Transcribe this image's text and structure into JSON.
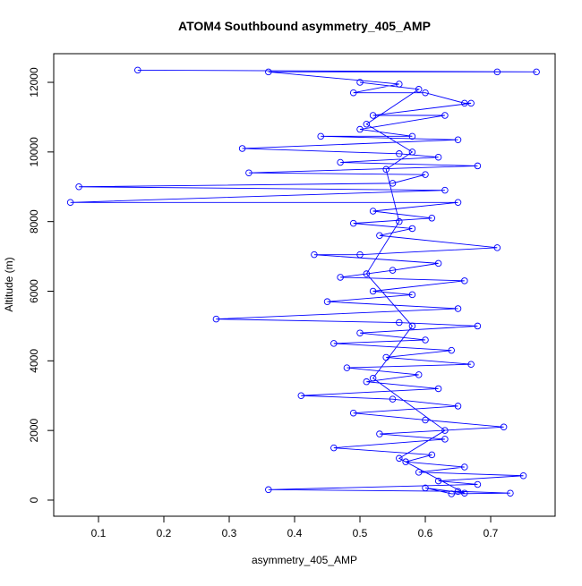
{
  "chart_data": {
    "type": "line",
    "title": "ATOM4 Southbound asymmetry_405_AMP",
    "x_label": "asymmetry_405_AMP",
    "y_label": "Altitude (m)",
    "color": "#0000ff",
    "markers": true,
    "xlim": [
      0.0315,
      0.7986
    ],
    "ylim": [
      -463,
      12823
    ],
    "xticks": [
      0.1,
      0.2,
      0.3,
      0.4,
      0.5,
      0.6,
      0.7
    ],
    "yticks": [
      0,
      2000,
      4000,
      6000,
      8000,
      10000,
      12000
    ],
    "x": [
      0.16,
      0.77,
      0.71,
      0.36,
      0.56,
      0.49,
      0.6,
      0.66,
      0.67,
      0.52,
      0.63,
      0.5,
      0.58,
      0.44,
      0.65,
      0.32,
      0.56,
      0.62,
      0.47,
      0.68,
      0.33,
      0.6,
      0.55,
      0.07,
      0.63,
      0.057,
      0.65,
      0.52,
      0.61,
      0.49,
      0.58,
      0.53,
      0.71,
      0.5,
      0.43,
      0.62,
      0.55,
      0.47,
      0.66,
      0.52,
      0.58,
      0.45,
      0.65,
      0.28,
      0.56,
      0.68,
      0.5,
      0.6,
      0.46,
      0.64,
      0.54,
      0.67,
      0.48,
      0.59,
      0.51,
      0.62,
      0.41,
      0.55,
      0.65,
      0.49,
      0.6,
      0.72,
      0.53,
      0.63,
      0.46,
      0.61,
      0.57,
      0.66,
      0.59,
      0.75,
      0.62,
      0.68,
      0.36,
      0.65,
      0.73,
      0.64,
      0.6,
      0.66,
      0.56,
      0.63,
      0.52,
      0.58,
      0.51,
      0.56,
      0.54,
      0.58,
      0.51,
      0.59,
      0.5
    ],
    "y": [
      12350,
      12300,
      12300,
      12300,
      11950,
      11700,
      11700,
      11400,
      11400,
      11050,
      11050,
      10650,
      10450,
      10450,
      10350,
      10100,
      9950,
      9850,
      9700,
      9600,
      9400,
      9350,
      9100,
      9000,
      8900,
      8550,
      8550,
      8300,
      8100,
      7950,
      7800,
      7600,
      7250,
      7050,
      7050,
      6800,
      6600,
      6400,
      6300,
      6000,
      5900,
      5700,
      5500,
      5200,
      5100,
      5000,
      4800,
      4600,
      4500,
      4300,
      4100,
      3900,
      3800,
      3600,
      3400,
      3200,
      3000,
      2900,
      2700,
      2500,
      2300,
      2100,
      1900,
      1750,
      1500,
      1300,
      1100,
      950,
      800,
      700,
      550,
      450,
      300,
      250,
      200,
      180,
      350,
      200,
      1200,
      2000,
      3500,
      5000,
      6500,
      8000,
      9500,
      10000,
      10800,
      11800,
      12000
    ]
  }
}
